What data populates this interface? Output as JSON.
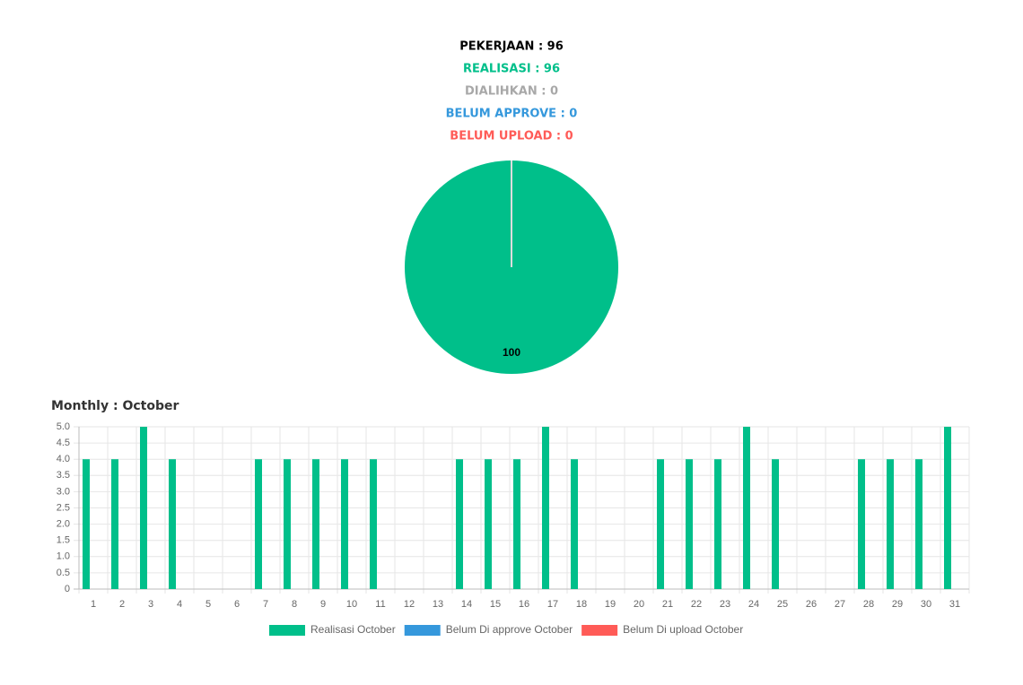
{
  "stats": [
    {
      "text": "PEKERJAAN : 96",
      "color": "#000000"
    },
    {
      "text": "REALISASI : 96",
      "color": "#00bf8a"
    },
    {
      "text": "DIALIHKAN : 0",
      "color": "#a8a8a8"
    },
    {
      "text": "BELUM APPROVE : 0",
      "color": "#3598dc"
    },
    {
      "text": "BELUM UPLOAD : 0",
      "color": "#ff5b57"
    }
  ],
  "chart_data": [
    {
      "type": "pie",
      "values": [
        100
      ],
      "colors": [
        "#00bf8a"
      ]
    },
    {
      "type": "bar",
      "title": "Monthly : October",
      "categories": [
        "1",
        "2",
        "3",
        "4",
        "5",
        "6",
        "7",
        "8",
        "9",
        "10",
        "11",
        "12",
        "13",
        "14",
        "15",
        "16",
        "17",
        "18",
        "19",
        "20",
        "21",
        "22",
        "23",
        "24",
        "25",
        "26",
        "27",
        "28",
        "29",
        "30",
        "31"
      ],
      "series": [
        {
          "name": "Realisasi October",
          "color": "#00bf8a",
          "values": [
            4,
            4,
            5,
            4,
            0,
            0,
            4,
            4,
            4,
            4,
            4,
            0,
            0,
            4,
            4,
            4,
            5,
            4,
            0,
            0,
            4,
            4,
            4,
            5,
            4,
            0,
            0,
            4,
            4,
            4,
            5
          ]
        },
        {
          "name": "Belum Di approve October",
          "color": "#3598dc",
          "values": [
            0,
            0,
            0,
            0,
            0,
            0,
            0,
            0,
            0,
            0,
            0,
            0,
            0,
            0,
            0,
            0,
            0,
            0,
            0,
            0,
            0,
            0,
            0,
            0,
            0,
            0,
            0,
            0,
            0,
            0,
            0
          ]
        },
        {
          "name": "Belum Di upload October",
          "color": "#ff5b57",
          "values": [
            0,
            0,
            0,
            0,
            0,
            0,
            0,
            0,
            0,
            0,
            0,
            0,
            0,
            0,
            0,
            0,
            0,
            0,
            0,
            0,
            0,
            0,
            0,
            0,
            0,
            0,
            0,
            0,
            0,
            0,
            0
          ]
        }
      ],
      "ylim": [
        0,
        5
      ],
      "yticks": [
        0,
        {
          "value": 0.5,
          "label": "0.5"
        },
        {
          "value": 1,
          "label": "1.0"
        },
        {
          "value": 1.5,
          "label": "1.5"
        },
        {
          "value": 2,
          "label": "2.0"
        },
        {
          "value": 2.5,
          "label": "2.5"
        },
        {
          "value": 3,
          "label": "3.0"
        },
        {
          "value": 3.5,
          "label": "3.5"
        },
        {
          "value": 4,
          "label": "4.0"
        },
        {
          "value": 4.5,
          "label": "4.5"
        },
        {
          "value": 5,
          "label": "5.0"
        }
      ],
      "grid": true
    }
  ]
}
